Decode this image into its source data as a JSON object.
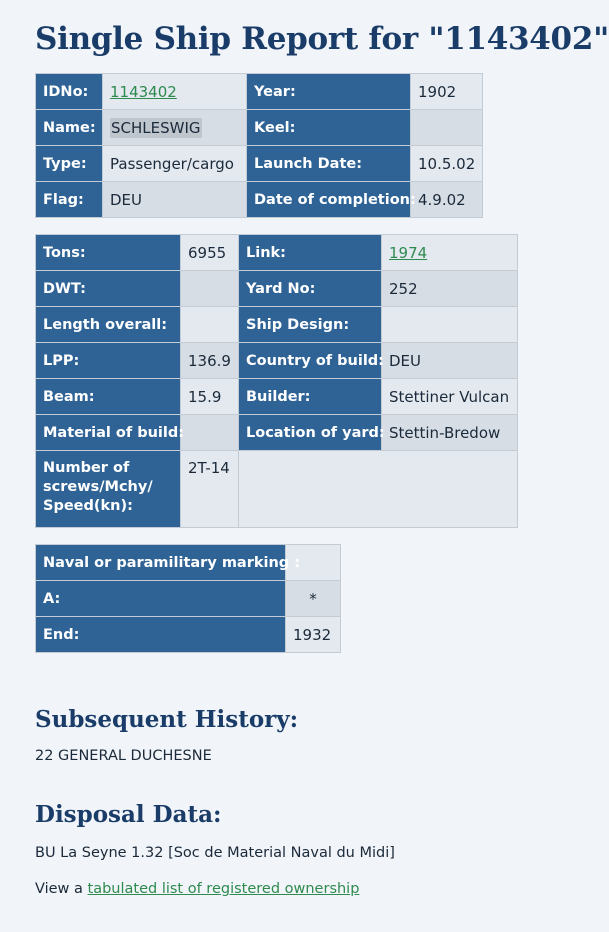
{
  "title": "Single Ship Report for \"1143402\"",
  "basic": {
    "idno_label": "IDNo:",
    "idno_value": "1143402",
    "year_label": "Year:",
    "year_value": "1902",
    "name_label": "Name:",
    "name_value": "SCHLESWIG",
    "keel_label": "Keel:",
    "keel_value": "",
    "type_label": "Type:",
    "type_value": "Passenger/cargo",
    "launch_label": "Launch Date:",
    "launch_value": "10.5.02",
    "flag_label": "Flag:",
    "flag_value": "DEU",
    "completion_label": "Date of completion:",
    "completion_value": "4.9.02"
  },
  "specs": {
    "tons_label": "Tons:",
    "tons_value": "6955",
    "link_label": "Link:",
    "link_value": "1974",
    "dwt_label": "DWT:",
    "dwt_value": "",
    "yard_label": "Yard No:",
    "yard_value": "252",
    "length_label": "Length overall:",
    "length_value": "",
    "design_label": "Ship Design:",
    "design_value": "",
    "lpp_label": "LPP:",
    "lpp_value": "136.9",
    "country_label": "Country of build:",
    "country_value": "DEU",
    "beam_label": "Beam:",
    "beam_value": "15.9",
    "builder_label": "Builder:",
    "builder_value": "Stettiner Vulcan",
    "material_label": "Material of build:",
    "material_value": "",
    "location_label": "Location of yard:",
    "location_value": "Stettin-Bredow",
    "screws_label": "Number of screws/Mchy/ Speed(kn):",
    "screws_value": "2T-14"
  },
  "naval": {
    "marking_label": "Naval or paramilitary marking :",
    "marking_value": "",
    "a_label": "A:",
    "a_value": "*",
    "end_label": "End:",
    "end_value": "1932"
  },
  "history": {
    "title": "Subsequent History:",
    "text": "22 GENERAL DUCHESNE"
  },
  "disposal": {
    "title": "Disposal Data:",
    "text": "BU La Seyne 1.32 [Soc de Material Naval du Midi]",
    "ownership_prefix": "View a ",
    "ownership_link": "tabulated list of registered ownership"
  }
}
